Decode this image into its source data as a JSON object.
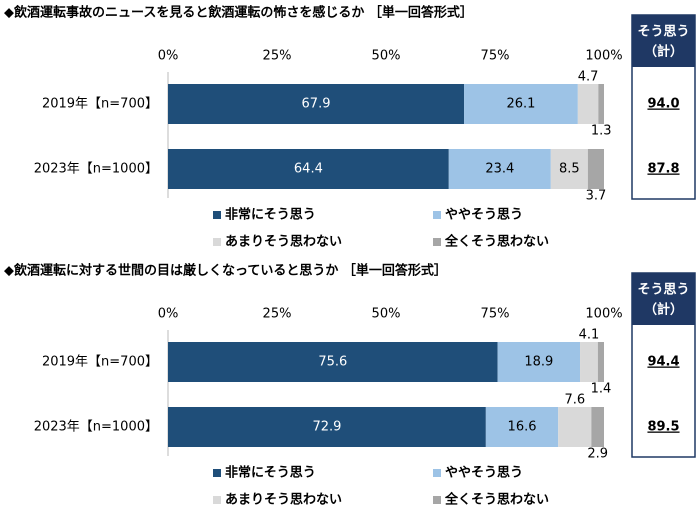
{
  "chart_data": [
    {
      "type": "stacked-bar-horizontal",
      "title": "◆飲酒運転事故のニュースを見ると飲酒運転の怖さを感じるか ［単一回答形式］",
      "categories": [
        "2019年【n=700】",
        "2023年【n=1000】"
      ],
      "series": [
        {
          "name": "非常にそう思う",
          "color": "#1f4e79",
          "values": [
            67.9,
            64.4
          ]
        },
        {
          "name": "ややそう思う",
          "color": "#9dc3e6",
          "values": [
            26.1,
            23.4
          ]
        },
        {
          "name": "あまりそう思わない",
          "color": "#d9d9d9",
          "values": [
            4.7,
            8.5
          ]
        },
        {
          "name": "全くそう思わない",
          "color": "#a6a6a6",
          "values": [
            1.3,
            3.7
          ]
        }
      ],
      "xlim": [
        0,
        100
      ],
      "xticks": [
        {
          "value": 0,
          "label": "0%"
        },
        {
          "value": 25,
          "label": "25%"
        },
        {
          "value": 50,
          "label": "50%"
        },
        {
          "value": 75,
          "label": "75%"
        },
        {
          "value": 100,
          "label": "100%"
        }
      ],
      "summary": {
        "header": [
          "そう思う",
          "（計）"
        ],
        "values": [
          94.0,
          87.8
        ],
        "value_labels": [
          "94.0",
          "87.8"
        ]
      }
    },
    {
      "type": "stacked-bar-horizontal",
      "title": "◆飲酒運転に対する世間の目は厳しくなっていると思うか ［単一回答形式］",
      "categories": [
        "2019年【n=700】",
        "2023年【n=1000】"
      ],
      "series": [
        {
          "name": "非常にそう思う",
          "color": "#1f4e79",
          "values": [
            75.6,
            72.9
          ]
        },
        {
          "name": "ややそう思う",
          "color": "#9dc3e6",
          "values": [
            18.9,
            16.6
          ]
        },
        {
          "name": "あまりそう思わない",
          "color": "#d9d9d9",
          "values": [
            4.1,
            7.6
          ]
        },
        {
          "name": "全くそう思わない",
          "color": "#a6a6a6",
          "values": [
            1.4,
            2.9
          ]
        }
      ],
      "xlim": [
        0,
        100
      ],
      "xticks": [
        {
          "value": 0,
          "label": "0%"
        },
        {
          "value": 25,
          "label": "25%"
        },
        {
          "value": 50,
          "label": "50%"
        },
        {
          "value": 75,
          "label": "75%"
        },
        {
          "value": 100,
          "label": "100%"
        }
      ],
      "summary": {
        "header": [
          "そう思う",
          "（計）"
        ],
        "values": [
          94.4,
          89.5
        ],
        "value_labels": [
          "94.4",
          "89.5"
        ]
      }
    }
  ]
}
